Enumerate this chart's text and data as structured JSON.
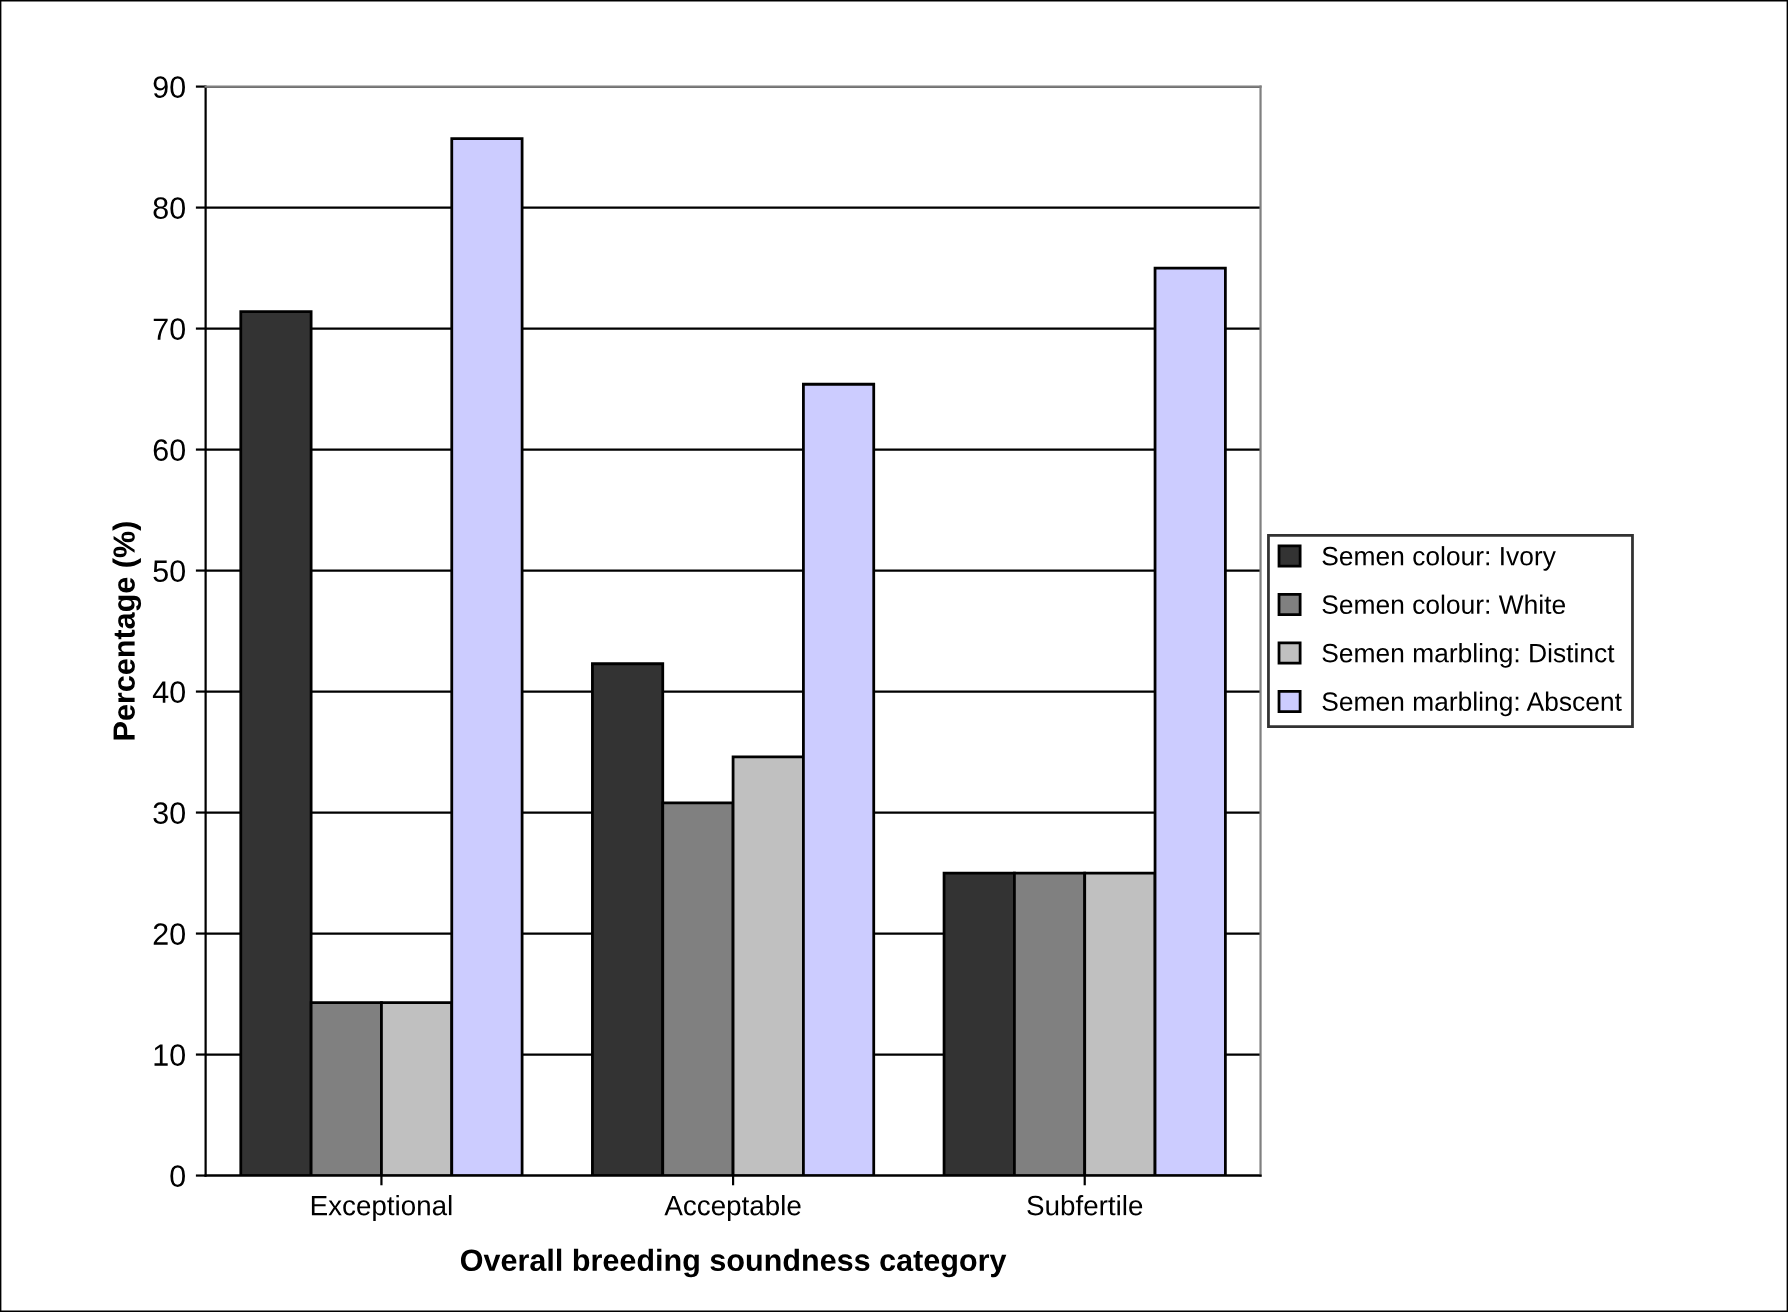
{
  "chart_data": {
    "type": "bar",
    "xlabel": "Overall breeding soundness category",
    "ylabel": "Percentage (%)",
    "categories": [
      "Exceptional",
      "Acceptable",
      "Subfertile"
    ],
    "series": [
      {
        "name": "Semen colour: Ivory",
        "color": "#333333",
        "values": [
          71.4,
          42.3,
          25
        ]
      },
      {
        "name": "Semen colour: White",
        "color": "#808080",
        "values": [
          14.3,
          30.8,
          25
        ]
      },
      {
        "name": "Semen marbling: Distinct",
        "color": "#c0c0c0",
        "values": [
          14.3,
          34.6,
          25
        ]
      },
      {
        "name": "Semen marbling: Abscent",
        "color": "#ccccff",
        "values": [
          85.7,
          65.4,
          75
        ]
      }
    ],
    "ylim": [
      0,
      90
    ],
    "yticks": [
      0,
      10,
      20,
      30,
      40,
      50,
      60,
      70,
      80,
      90
    ],
    "grid": "y",
    "legend": "right"
  }
}
